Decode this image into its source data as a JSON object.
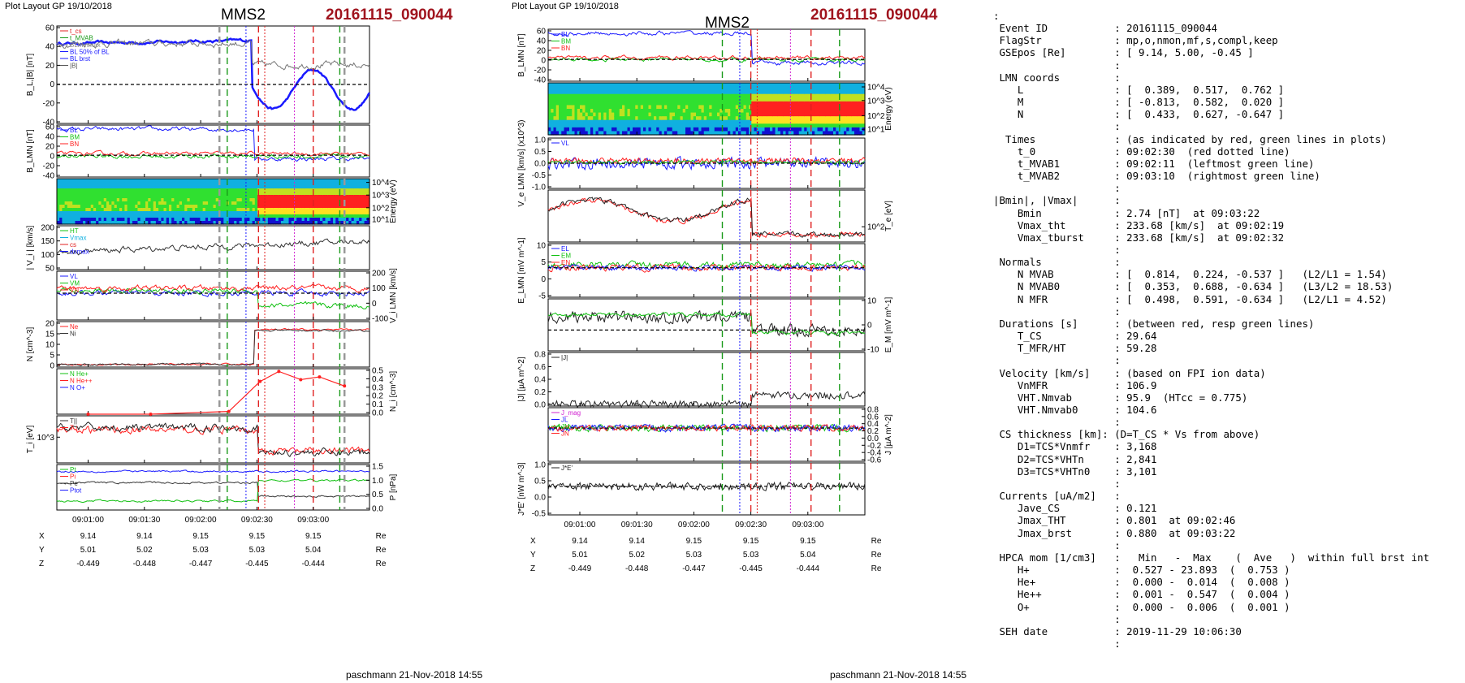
{
  "left": {
    "plot_layout": "Plot Layout GP 19/10/2018",
    "sc": "MMS2",
    "event": "20161115_090044",
    "footer": "paschmann 21-Nov-2018 14:55"
  },
  "mid": {
    "plot_layout": "Plot Layout GP 19/10/2018",
    "sc": "MMS2",
    "event": "20161115_090044",
    "footer": "paschmann 21-Nov-2018 14:55"
  },
  "chart_data": [
    {
      "type": "line",
      "panel_set": "left",
      "x_ticks": [
        "09:01:00",
        "09:01:30",
        "09:02:00",
        "09:02:30",
        "09:03:00"
      ],
      "ephemeris": {
        "rows": [
          {
            "label": "X",
            "values": [
              "9.14",
              "9.14",
              "9.15",
              "9.15",
              "9.15"
            ],
            "unit": "Re"
          },
          {
            "label": "Y",
            "values": [
              "5.01",
              "5.02",
              "5.03",
              "5.03",
              "5.04"
            ],
            "unit": "Re"
          },
          {
            "label": "Z",
            "values": [
              "-0.449",
              "-0.448",
              "-0.447",
              "-0.445",
              "-0.444"
            ],
            "unit": "Re"
          }
        ]
      },
      "panels": [
        {
          "ylabel": "B_L,|B| [nT]",
          "yticks": [
            "60",
            "40",
            "20",
            "0",
            "-20",
            "-40"
          ],
          "legend": [
            "t_cs",
            "t_MVAB",
            "BLminmax",
            "BL 50% of BL",
            "BL brst",
            "|B|"
          ]
        },
        {
          "ylabel": "B_LMN [nT]",
          "yticks": [
            "60",
            "40",
            "20",
            "0",
            "-20",
            "-40"
          ],
          "legend": [
            "BL",
            "BM",
            "BN"
          ]
        },
        {
          "ylabel": "Energy (eV)",
          "yticks": [
            "10^4",
            "10^3",
            "10^2",
            "10^1"
          ],
          "spectrogram": true
        },
        {
          "ylabel": "| V_i | [km/s]",
          "yticks": [
            "200",
            "150",
            "100",
            "50"
          ],
          "legend": [
            "HT",
            "Vmax",
            "cs",
            "dvmax"
          ]
        },
        {
          "ylabel": "V_i LMN [km/s]",
          "yticks": [
            "200",
            "100",
            "0",
            "-100"
          ],
          "legend": [
            "VL",
            "VM",
            "VN"
          ]
        },
        {
          "ylabel": "N [cm^-3]",
          "yticks": [
            "20",
            "15",
            "10",
            "5",
            "0"
          ],
          "legend": [
            "Ne",
            "Ni"
          ]
        },
        {
          "ylabel": "N_i [cm^-3]",
          "yticks": [
            "0.5",
            "0.4",
            "0.3",
            "0.2",
            "0.1",
            "0.0"
          ],
          "legend": [
            "N He+",
            "N He++",
            "N O+"
          ],
          "series": [
            {
              "name": "N He++",
              "values": [
                0.0,
                0.0,
                0.03,
                0.36,
                0.47,
                0.38,
                0.41,
                0.31
              ]
            }
          ]
        },
        {
          "ylabel": "T_i [eV]",
          "yticks": [
            "10^3"
          ],
          "legend": [
            "T||",
            "T⊥"
          ]
        },
        {
          "ylabel": "P [nPa]",
          "yticks": [
            "1.5",
            "1.0",
            "0.5",
            "0.0"
          ],
          "legend": [
            "Pt",
            "Pi",
            "Pe",
            "Ptot"
          ]
        }
      ]
    },
    {
      "type": "line",
      "panel_set": "middle",
      "x_ticks": [
        "09:01:00",
        "09:01:30",
        "09:02:00",
        "09:02:30",
        "09:03:00"
      ],
      "ephemeris": {
        "rows": [
          {
            "label": "X",
            "values": [
              "9.14",
              "9.14",
              "9.15",
              "9.15",
              "9.15"
            ],
            "unit": "Re"
          },
          {
            "label": "Y",
            "values": [
              "5.01",
              "5.02",
              "5.03",
              "5.03",
              "5.04"
            ],
            "unit": "Re"
          },
          {
            "label": "Z",
            "values": [
              "-0.449",
              "-0.448",
              "-0.447",
              "-0.445",
              "-0.444"
            ],
            "unit": "Re"
          }
        ]
      },
      "panels": [
        {
          "ylabel": "B_LMN [nT]",
          "yticks": [
            "60",
            "40",
            "20",
            "0",
            "-20",
            "-40"
          ],
          "legend": [
            "BL",
            "BM",
            "BN"
          ]
        },
        {
          "ylabel": "Energy (eV)",
          "yticks": [
            "10^4",
            "10^3",
            "10^2",
            "10^1"
          ],
          "spectrogram": true
        },
        {
          "ylabel": "V_e LMN [km/s] (x10^3)",
          "yticks": [
            "1.0",
            "0.5",
            "0.0",
            "-0.5",
            "-1.0"
          ],
          "legend": [
            "VL"
          ]
        },
        {
          "ylabel": "T_e [eV]",
          "yticks": [
            "10^2"
          ]
        },
        {
          "ylabel": "E_LMN [mV m^-1]",
          "yticks": [
            "10",
            "5",
            "0",
            "-5"
          ],
          "legend": [
            "EL",
            "EM",
            "EN"
          ]
        },
        {
          "ylabel": "E_M [mV m^-1]",
          "yticks": [
            "10",
            "0",
            "-10"
          ]
        },
        {
          "ylabel": "|J| [µA m^-2]",
          "yticks": [
            "0.8",
            "0.6",
            "0.4",
            "0.2",
            "0.0"
          ],
          "legend": [
            "|J|"
          ]
        },
        {
          "ylabel": "J [µA m^-2]",
          "yticks": [
            "0.8",
            "0.6",
            "0.4",
            "0.2",
            "0.0",
            "-0.2",
            "-0.4",
            "-0.6"
          ],
          "legend": [
            "J_mag",
            "JL",
            "JM",
            "JN"
          ]
        },
        {
          "ylabel": "J*E' [nW m^-3]",
          "yticks": [
            "1.0",
            "0.5",
            "0.0",
            "-0.5"
          ],
          "legend": [
            "J*E'"
          ]
        }
      ]
    }
  ],
  "info": {
    "lines": [
      ":",
      " Event ID           : 20161115_090044",
      " FlagStr            : mp,o,nmon,mf,s,compl,keep",
      " GSEpos [Re]        : [ 9.14, 5.00, -0.45 ]",
      "                    :",
      " LMN coords         :",
      "    L               : [  0.389,  0.517,  0.762 ]",
      "    M               : [ -0.813,  0.582,  0.020 ]",
      "    N               : [  0.433,  0.627, -0.647 ]",
      "                    :",
      "  Times             : (as indicated by red, green lines in plots)",
      "    t_0             : 09:02:30  (red dotted line)",
      "    t_MVAB1         : 09:02:11  (leftmost green line)",
      "    t_MVAB2         : 09:03:10  (rightmost green line)",
      "                    :",
      "|Bmin|, |Vmax|      :",
      "    Bmin            : 2.74 [nT]  at 09:03:22",
      "    Vmax_tht        : 233.68 [km/s]  at 09:02:19",
      "    Vmax_tburst     : 233.68 [km/s]  at 09:02:32",
      "                    :",
      " Normals            :",
      "    N MVAB          : [  0.814,  0.224, -0.537 ]   (L2/L1 = 1.54)",
      "    N MVAB0         : [  0.353,  0.688, -0.634 ]   (L3/L2 = 18.53)",
      "    N MFR           : [  0.498,  0.591, -0.634 ]   (L2/L1 = 4.52)",
      "                    :",
      " Durations [s]      : (between red, resp green lines)",
      "    T_CS            : 29.64",
      "    T_MFR/HT        : 59.28",
      "                    :",
      " Velocity [km/s]    : (based on FPI ion data)",
      "    VnMFR           : 106.9",
      "    VHT.Nmvab       : 95.9  (HTcc = 0.775)",
      "    VHT.Nmvab0      : 104.6",
      "                    :",
      " CS thickness [km]: (D=T_CS * Vs from above)",
      "    D1=TCS*Vnmfr    : 3,168",
      "    D2=TCS*VHTn     : 2,841",
      "    D3=TCS*VHTn0    : 3,101",
      "                    :",
      " Currents [uA/m2]   :",
      "    Jave_CS         : 0.121",
      "    Jmax_THT        : 0.801  at 09:02:46",
      "    Jmax_brst       : 0.880  at 09:03:22",
      "                    :",
      " HPCA mom [1/cm3]   :   Min   -  Max    (  Ave   )  within full brst int",
      "    H+              :  0.527 - 23.893  (  0.753 )",
      "    He+             :  0.000 -  0.014  (  0.008 )",
      "    He++            :  0.001 -  0.547  (  0.004 )",
      "    O+              :  0.000 -  0.006  (  0.001 )",
      "                    :",
      " SEH date           : 2019-11-29 10:06:30",
      "                    :"
    ]
  },
  "colors": {
    "event": "#a0141e",
    "bl": "#1a1aff",
    "bm": "#10c010",
    "bn": "#ff2020",
    "spec_bg": "#30e030"
  }
}
